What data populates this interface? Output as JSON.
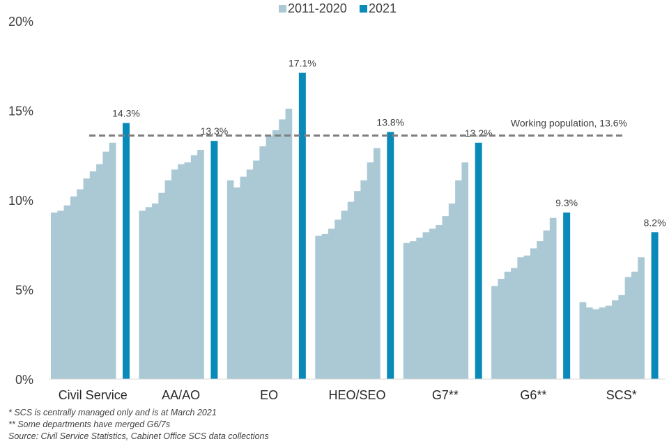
{
  "chart_data": {
    "type": "bar",
    "ylim": [
      0,
      20
    ],
    "y_ticks": [
      0,
      5,
      10,
      15,
      20
    ],
    "y_tick_labels": [
      "0%",
      "5%",
      "10%",
      "15%",
      "20%"
    ],
    "legend": [
      {
        "name": "2011-2020",
        "color": "#abc9d4"
      },
      {
        "name": "2021",
        "color": "#0a8ab8"
      }
    ],
    "legend_position": "top-center",
    "categories": [
      "Civil Service",
      "AA/AO",
      "EO",
      "HEO/SEO",
      "G7**",
      "G6**",
      "SCS*"
    ],
    "series_2011_2020": [
      [
        9.3,
        9.4,
        9.7,
        10.2,
        10.6,
        11.2,
        11.6,
        12.0,
        12.7,
        13.2
      ],
      [
        9.4,
        9.6,
        9.8,
        10.4,
        11.1,
        11.7,
        12.0,
        12.1,
        12.5,
        12.8
      ],
      [
        11.1,
        10.7,
        11.3,
        11.7,
        12.2,
        13.0,
        13.6,
        13.9,
        14.5,
        15.1
      ],
      [
        8.0,
        8.1,
        8.4,
        8.9,
        9.4,
        9.9,
        10.5,
        11.1,
        12.1,
        12.9
      ],
      [
        7.6,
        7.7,
        7.9,
        8.2,
        8.4,
        8.6,
        9.1,
        9.8,
        11.1,
        12.1
      ],
      [
        5.2,
        5.6,
        6.0,
        6.2,
        6.8,
        6.9,
        7.3,
        7.7,
        8.3,
        9.0
      ],
      [
        4.3,
        4.0,
        3.9,
        4.0,
        4.1,
        4.4,
        4.7,
        5.7,
        6.0,
        6.8
      ]
    ],
    "series_2021": [
      14.3,
      13.3,
      17.1,
      13.8,
      13.2,
      9.3,
      8.2
    ],
    "data_labels_2021": [
      "14.3%",
      "13.3%",
      "17.1%",
      "13.8%",
      "13.2%",
      "9.3%",
      "8.2%"
    ],
    "reference_line": {
      "value": 13.6,
      "label": "Working population,  13.6%",
      "color": "#7f7f7f"
    }
  },
  "footnotes": [
    "* SCS is centrally managed only and is at March 2021",
    "** Some departments have merged G6/7s",
    "Source: Civil Service Statistics, Cabinet Office SCS data collections"
  ]
}
